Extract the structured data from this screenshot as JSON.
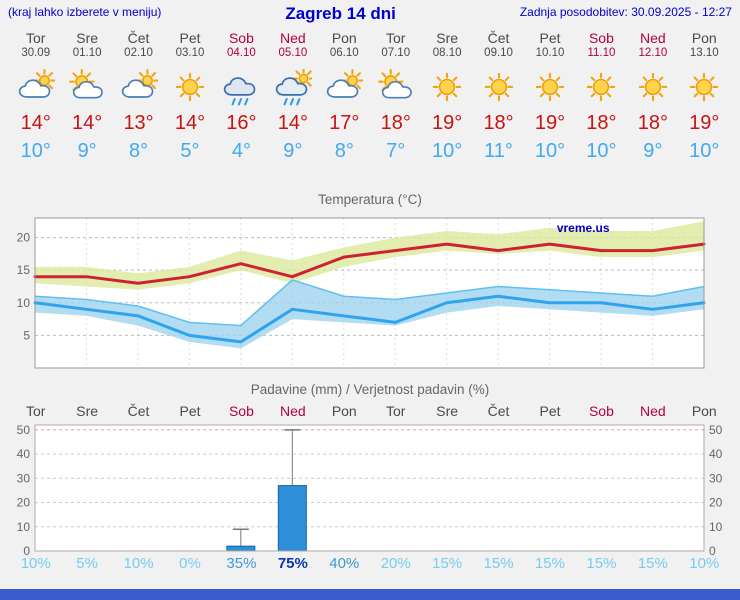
{
  "header": {
    "note": "(kraj lahko izberete v meniju)",
    "title": "Zagreb 14 dni",
    "updated": "Zadnja posodobitev: 30.09.2025 - 12:27"
  },
  "days": [
    {
      "name": "Tor",
      "date": "30.09",
      "weekend": false,
      "icon": "cloud-sun",
      "tmax": "14°",
      "tmin": "10°",
      "precip_prob": "10%",
      "prob_level": "low"
    },
    {
      "name": "Sre",
      "date": "01.10",
      "weekend": false,
      "icon": "sun-cloud",
      "tmax": "14°",
      "tmin": "9°",
      "precip_prob": "5%",
      "prob_level": "low"
    },
    {
      "name": "Čet",
      "date": "02.10",
      "weekend": false,
      "icon": "cloud-sun",
      "tmax": "13°",
      "tmin": "8°",
      "precip_prob": "10%",
      "prob_level": "low"
    },
    {
      "name": "Pet",
      "date": "03.10",
      "weekend": false,
      "icon": "sun",
      "tmax": "14°",
      "tmin": "5°",
      "precip_prob": "0%",
      "prob_level": "low"
    },
    {
      "name": "Sob",
      "date": "04.10",
      "weekend": true,
      "icon": "rain",
      "tmax": "16°",
      "tmin": "4°",
      "precip_prob": "35%",
      "prob_level": "mid"
    },
    {
      "name": "Ned",
      "date": "05.10",
      "weekend": true,
      "icon": "rain-sun",
      "tmax": "14°",
      "tmin": "9°",
      "precip_prob": "75%",
      "prob_level": "high"
    },
    {
      "name": "Pon",
      "date": "06.10",
      "weekend": false,
      "icon": "cloud-sun",
      "tmax": "17°",
      "tmin": "8°",
      "precip_prob": "40%",
      "prob_level": "mid"
    },
    {
      "name": "Tor",
      "date": "07.10",
      "weekend": false,
      "icon": "sun-cloud",
      "tmax": "18°",
      "tmin": "7°",
      "precip_prob": "20%",
      "prob_level": "low"
    },
    {
      "name": "Sre",
      "date": "08.10",
      "weekend": false,
      "icon": "sun",
      "tmax": "19°",
      "tmin": "10°",
      "precip_prob": "15%",
      "prob_level": "low"
    },
    {
      "name": "Čet",
      "date": "09.10",
      "weekend": false,
      "icon": "sun",
      "tmax": "18°",
      "tmin": "11°",
      "precip_prob": "15%",
      "prob_level": "low"
    },
    {
      "name": "Pet",
      "date": "10.10",
      "weekend": false,
      "icon": "sun",
      "tmax": "19°",
      "tmin": "10°",
      "precip_prob": "15%",
      "prob_level": "low"
    },
    {
      "name": "Sob",
      "date": "11.10",
      "weekend": true,
      "icon": "sun",
      "tmax": "18°",
      "tmin": "10°",
      "precip_prob": "15%",
      "prob_level": "low"
    },
    {
      "name": "Ned",
      "date": "12.10",
      "weekend": true,
      "icon": "sun",
      "tmax": "18°",
      "tmin": "9°",
      "precip_prob": "15%",
      "prob_level": "low"
    },
    {
      "name": "Pon",
      "date": "13.10",
      "weekend": false,
      "icon": "sun",
      "tmax": "19°",
      "tmin": "10°",
      "precip_prob": "10%",
      "prob_level": "low"
    }
  ],
  "chart_data": [
    {
      "type": "line",
      "title": "Temperatura (°C)",
      "categories": [
        "Tor",
        "Sre",
        "Čet",
        "Pet",
        "Sob",
        "Ned",
        "Pon",
        "Tor",
        "Sre",
        "Čet",
        "Pet",
        "Sob",
        "Ned",
        "Pon"
      ],
      "series": [
        {
          "name": "max temperatura",
          "color": "#cc2233",
          "values": [
            14,
            14,
            13,
            14,
            16,
            14,
            17,
            18,
            19,
            18,
            19,
            18,
            18,
            19
          ]
        },
        {
          "name": "min temperatura",
          "color": "#2fa3ee",
          "values": [
            10,
            9,
            8,
            5,
            4,
            9,
            8,
            7,
            10,
            11,
            10,
            10,
            9,
            10
          ]
        }
      ],
      "bands": [
        {
          "name": "max razpon",
          "color": "#dce89b",
          "upper": [
            15.5,
            15.5,
            14.5,
            15.5,
            18,
            16.5,
            18.5,
            20,
            21,
            20.5,
            21.5,
            21,
            21,
            22.5
          ],
          "lower": [
            13,
            12.5,
            12,
            13,
            15,
            13,
            15.5,
            17,
            18,
            17.5,
            18,
            17,
            17,
            18
          ]
        },
        {
          "name": "min razpon",
          "color": "#9fd3ee",
          "upper": [
            11,
            10.5,
            9.5,
            7,
            6.5,
            13.5,
            11,
            10.5,
            11.5,
            12.5,
            12,
            11.5,
            11,
            12.5
          ],
          "lower": [
            8.5,
            8,
            6.5,
            4,
            3,
            7.5,
            7,
            6.5,
            8.5,
            9.5,
            9,
            8.5,
            8,
            9
          ]
        }
      ],
      "ylim": [
        0,
        23
      ],
      "yticks": [
        5,
        10,
        15,
        20
      ],
      "grid": true,
      "legend": "none",
      "watermark": "vreme.us"
    },
    {
      "type": "bar",
      "title": "Padavine (mm) / Verjetnost padavin (%)",
      "categories": [
        "Tor",
        "Sre",
        "Čet",
        "Pet",
        "Sob",
        "Ned",
        "Pon",
        "Tor",
        "Sre",
        "Čet",
        "Pet",
        "Sob",
        "Ned",
        "Pon"
      ],
      "values": [
        0,
        0,
        0,
        0,
        2,
        27,
        0,
        0,
        0,
        0,
        0,
        0,
        0,
        0
      ],
      "whiskers": [
        0,
        0,
        0,
        0,
        9,
        50,
        0,
        0,
        0,
        0,
        0,
        0,
        0,
        0
      ],
      "probabilities": [
        "10%",
        "5%",
        "10%",
        "0%",
        "35%",
        "75%",
        "40%",
        "20%",
        "15%",
        "15%",
        "15%",
        "15%",
        "15%",
        "10%"
      ],
      "ylim": [
        0,
        52
      ],
      "yticks": [
        0,
        10,
        20,
        30,
        40,
        50
      ],
      "grid": true,
      "bar_color": "#2e8fd8"
    }
  ],
  "colors": {
    "accent_blue": "#0000cc",
    "weekend_red": "#b3003c",
    "tmax_red": "#cc1111",
    "tmin_blue": "#3fa9f5",
    "footer_bar": "#3a5ccc",
    "prob_low": "#74cdf2",
    "prob_mid": "#3d9ad2",
    "prob_high": "#0a36b5",
    "band_max": "#dce89b",
    "band_min": "#9fd3ee"
  }
}
